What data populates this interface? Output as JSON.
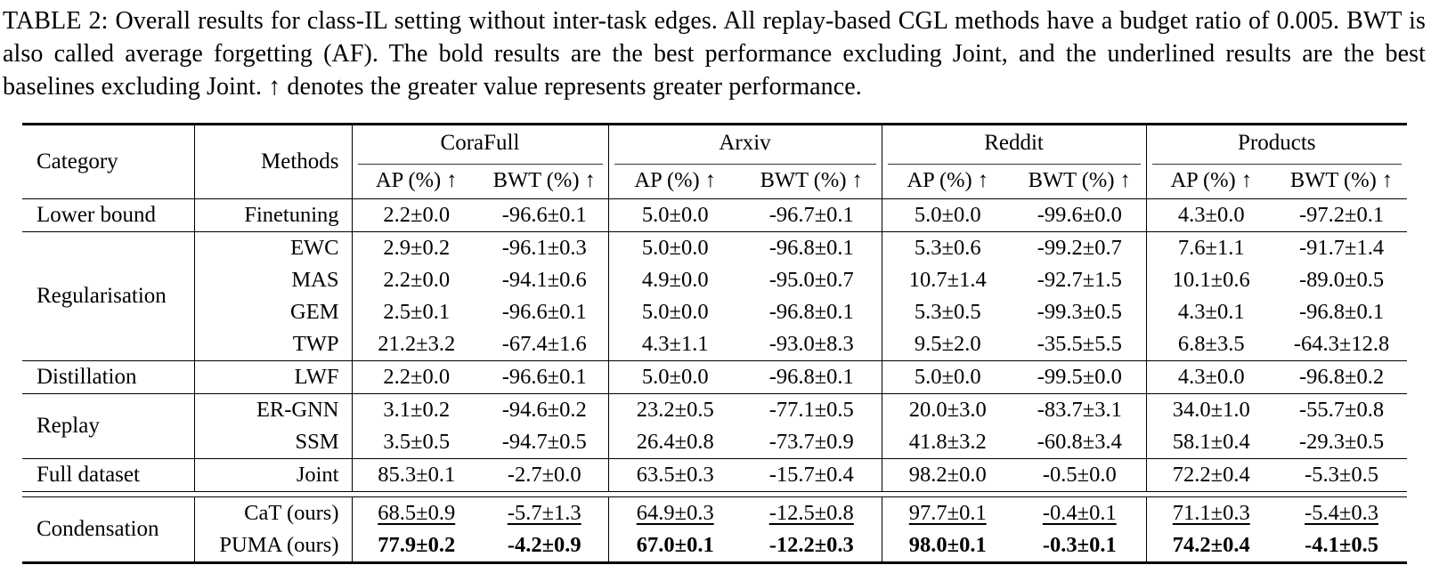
{
  "caption": "TABLE 2: Overall results for class-IL setting without inter-task edges. All replay-based CGL methods have a budget ratio of 0.005. BWT is also called average forgetting (AF). The bold results are the best performance excluding Joint, and the underlined results are the best baselines excluding Joint. ↑ denotes the greater value represents greater performance.",
  "table": {
    "header": {
      "category": "Category",
      "methods": "Methods",
      "groups": [
        "CoraFull",
        "Arxiv",
        "Reddit",
        "Products"
      ],
      "subheaders": [
        "AP (%) ↑",
        "BWT (%) ↑"
      ]
    },
    "blocks": [
      {
        "category": "Lower bound",
        "rows": [
          {
            "method": "Finetuning",
            "style": "normal",
            "values": [
              "2.2±0.0",
              "-96.6±0.1",
              "5.0±0.0",
              "-96.7±0.1",
              "5.0±0.0",
              "-99.6±0.0",
              "4.3±0.0",
              "-97.2±0.1"
            ]
          }
        ]
      },
      {
        "category": "Regularisation",
        "rows": [
          {
            "method": "EWC",
            "style": "normal",
            "values": [
              "2.9±0.2",
              "-96.1±0.3",
              "5.0±0.0",
              "-96.8±0.1",
              "5.3±0.6",
              "-99.2±0.7",
              "7.6±1.1",
              "-91.7±1.4"
            ]
          },
          {
            "method": "MAS",
            "style": "normal",
            "values": [
              "2.2±0.0",
              "-94.1±0.6",
              "4.9±0.0",
              "-95.0±0.7",
              "10.7±1.4",
              "-92.7±1.5",
              "10.1±0.6",
              "-89.0±0.5"
            ]
          },
          {
            "method": "GEM",
            "style": "normal",
            "values": [
              "2.5±0.1",
              "-96.6±0.1",
              "5.0±0.0",
              "-96.8±0.1",
              "5.3±0.5",
              "-99.3±0.5",
              "4.3±0.1",
              "-96.8±0.1"
            ]
          },
          {
            "method": "TWP",
            "style": "normal",
            "values": [
              "21.2±3.2",
              "-67.4±1.6",
              "4.3±1.1",
              "-93.0±8.3",
              "9.5±2.0",
              "-35.5±5.5",
              "6.8±3.5",
              "-64.3±12.8"
            ]
          }
        ]
      },
      {
        "category": "Distillation",
        "rows": [
          {
            "method": "LWF",
            "style": "normal",
            "values": [
              "2.2±0.0",
              "-96.6±0.1",
              "5.0±0.0",
              "-96.8±0.1",
              "5.0±0.0",
              "-99.5±0.0",
              "4.3±0.0",
              "-96.8±0.2"
            ]
          }
        ]
      },
      {
        "category": "Replay",
        "rows": [
          {
            "method": "ER-GNN",
            "style": "normal",
            "values": [
              "3.1±0.2",
              "-94.6±0.2",
              "23.2±0.5",
              "-77.1±0.5",
              "20.0±3.0",
              "-83.7±3.1",
              "34.0±1.0",
              "-55.7±0.8"
            ]
          },
          {
            "method": "SSM",
            "style": "normal",
            "values": [
              "3.5±0.5",
              "-94.7±0.5",
              "26.4±0.8",
              "-73.7±0.9",
              "41.8±3.2",
              "-60.8±3.4",
              "58.1±0.4",
              "-29.3±0.5"
            ]
          }
        ]
      },
      {
        "category": "Full dataset",
        "rows": [
          {
            "method": "Joint",
            "style": "normal",
            "values": [
              "85.3±0.1",
              "-2.7±0.0",
              "63.5±0.3",
              "-15.7±0.4",
              "98.2±0.0",
              "-0.5±0.0",
              "72.2±0.4",
              "-5.3±0.5"
            ]
          }
        ]
      },
      {
        "category": "Condensation",
        "double_rule_before": true,
        "rows": [
          {
            "method": "CaT (ours)",
            "style": "underline",
            "values": [
              "68.5±0.9",
              "-5.7±1.3",
              "64.9±0.3",
              "-12.5±0.8",
              "97.7±0.1",
              "-0.4±0.1",
              "71.1±0.3",
              "-5.4±0.3"
            ]
          },
          {
            "method": "PUMA (ours)",
            "style": "bold",
            "values": [
              "77.9±0.2",
              "-4.2±0.9",
              "67.0±0.1",
              "-12.2±0.3",
              "98.0±0.1",
              "-0.3±0.1",
              "74.2±0.4",
              "-4.1±0.5"
            ]
          }
        ]
      }
    ]
  }
}
